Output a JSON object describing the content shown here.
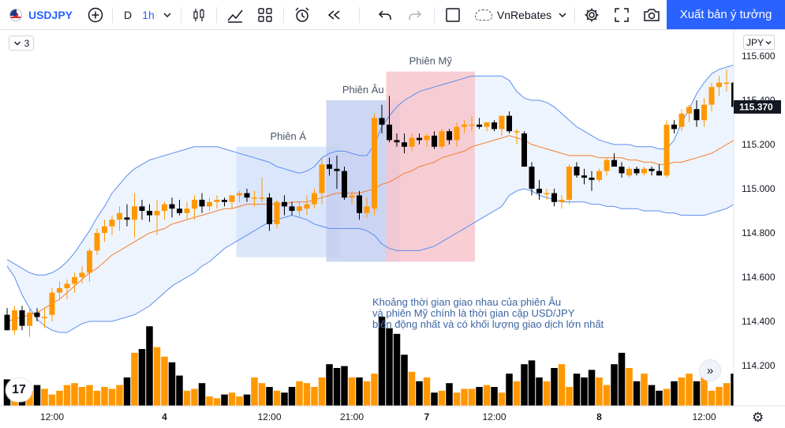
{
  "toolbar": {
    "symbol": "USDJPY",
    "interval_type": "D",
    "interval": "1h",
    "layout_name": "VnRebates",
    "publish_label": "Xuất bản ý tưởng"
  },
  "legend_badge": "3",
  "currency": "JPY",
  "current_price": "115.370",
  "annotation_lines": [
    "Khoảng thời gian giao nhau của phiên Âu",
    "và phiên Mỹ chính là thời gian cặp USD/JPY",
    "biến động nhất và có khối lượng giao dịch lớn nhất"
  ],
  "colors": {
    "bull": "#ff9800",
    "bear": "#000000",
    "band": "#5b8def",
    "band_fill": "#eef4fd",
    "basis": "#f57c2b",
    "session_asia": "#d6e3fb",
    "session_europe": "#c4cff1",
    "session_us": "#f7c6cc",
    "accent": "#2962ff"
  },
  "chart_data": {
    "type": "candlestick",
    "symbol": "USDJPY",
    "timeframe": "1h",
    "y_axis": {
      "ticks": [
        115.6,
        115.4,
        115.2,
        115.0,
        114.8,
        114.6,
        114.4,
        114.2
      ],
      "tick_labels": [
        "115.600",
        "115.400",
        "115.200",
        "115.000",
        "114.800",
        "114.600",
        "114.400",
        "114.200"
      ],
      "ylim": [
        114.03,
        115.66
      ]
    },
    "x_axis": {
      "tick_labels": [
        "12:00",
        "4",
        "12:00",
        "21:00",
        "7",
        "12:00",
        "8",
        "12:00"
      ]
    },
    "sessions": [
      {
        "name": "Phiên Á",
        "high": 115.19,
        "low": 114.69,
        "from_bar": 31,
        "to_bar": 44
      },
      {
        "name": "Phiên Âu",
        "high": 115.4,
        "low": 114.67,
        "from_bar": 43,
        "to_bar": 52
      },
      {
        "name": "Phiên Mỹ",
        "high": 115.53,
        "low": 114.67,
        "from_bar": 51,
        "to_bar": 62
      }
    ],
    "candles": [
      {
        "o": 114.43,
        "h": 114.46,
        "l": 114.36,
        "c": 114.36
      },
      {
        "o": 114.36,
        "h": 114.47,
        "l": 114.34,
        "c": 114.45
      },
      {
        "o": 114.45,
        "h": 114.47,
        "l": 114.36,
        "c": 114.38
      },
      {
        "o": 114.38,
        "h": 114.46,
        "l": 114.33,
        "c": 114.44
      },
      {
        "o": 114.44,
        "h": 114.46,
        "l": 114.4,
        "c": 114.42
      },
      {
        "o": 114.42,
        "h": 114.46,
        "l": 114.37,
        "c": 114.42
      },
      {
        "o": 114.43,
        "h": 114.55,
        "l": 114.4,
        "c": 114.53
      },
      {
        "o": 114.53,
        "h": 114.58,
        "l": 114.5,
        "c": 114.55
      },
      {
        "o": 114.55,
        "h": 114.59,
        "l": 114.5,
        "c": 114.57
      },
      {
        "o": 114.57,
        "h": 114.62,
        "l": 114.53,
        "c": 114.6
      },
      {
        "o": 114.6,
        "h": 114.65,
        "l": 114.57,
        "c": 114.62
      },
      {
        "o": 114.62,
        "h": 114.73,
        "l": 114.58,
        "c": 114.72
      },
      {
        "o": 114.72,
        "h": 114.82,
        "l": 114.7,
        "c": 114.8
      },
      {
        "o": 114.8,
        "h": 114.86,
        "l": 114.76,
        "c": 114.83
      },
      {
        "o": 114.83,
        "h": 114.88,
        "l": 114.79,
        "c": 114.86
      },
      {
        "o": 114.86,
        "h": 114.92,
        "l": 114.81,
        "c": 114.89
      },
      {
        "o": 114.87,
        "h": 114.93,
        "l": 114.83,
        "c": 114.86
      },
      {
        "o": 114.86,
        "h": 114.98,
        "l": 114.78,
        "c": 114.92
      },
      {
        "o": 114.92,
        "h": 114.95,
        "l": 114.86,
        "c": 114.9
      },
      {
        "o": 114.9,
        "h": 114.93,
        "l": 114.85,
        "c": 114.88
      },
      {
        "o": 114.88,
        "h": 114.95,
        "l": 114.79,
        "c": 114.9
      },
      {
        "o": 114.9,
        "h": 114.94,
        "l": 114.86,
        "c": 114.93
      },
      {
        "o": 114.93,
        "h": 114.96,
        "l": 114.87,
        "c": 114.91
      },
      {
        "o": 114.91,
        "h": 114.95,
        "l": 114.88,
        "c": 114.89
      },
      {
        "o": 114.89,
        "h": 114.94,
        "l": 114.86,
        "c": 114.91
      },
      {
        "o": 114.91,
        "h": 114.97,
        "l": 114.86,
        "c": 114.95
      },
      {
        "o": 114.95,
        "h": 114.98,
        "l": 114.89,
        "c": 114.92
      },
      {
        "o": 114.92,
        "h": 114.96,
        "l": 114.9,
        "c": 114.94
      },
      {
        "o": 114.94,
        "h": 114.97,
        "l": 114.91,
        "c": 114.95
      },
      {
        "o": 114.95,
        "h": 114.96,
        "l": 114.92,
        "c": 114.94
      },
      {
        "o": 114.94,
        "h": 114.97,
        "l": 114.91,
        "c": 114.97
      },
      {
        "o": 114.97,
        "h": 114.99,
        "l": 114.94,
        "c": 114.98
      },
      {
        "o": 114.98,
        "h": 115.0,
        "l": 114.94,
        "c": 114.96
      },
      {
        "o": 114.96,
        "h": 114.99,
        "l": 114.92,
        "c": 114.96
      },
      {
        "o": 114.96,
        "h": 115.05,
        "l": 114.94,
        "c": 114.96
      },
      {
        "o": 114.96,
        "h": 114.98,
        "l": 114.81,
        "c": 114.84
      },
      {
        "o": 114.84,
        "h": 114.95,
        "l": 114.82,
        "c": 114.94
      },
      {
        "o": 114.94,
        "h": 114.97,
        "l": 114.88,
        "c": 114.92
      },
      {
        "o": 114.92,
        "h": 114.94,
        "l": 114.88,
        "c": 114.9
      },
      {
        "o": 114.9,
        "h": 114.94,
        "l": 114.87,
        "c": 114.92
      },
      {
        "o": 114.91,
        "h": 114.97,
        "l": 114.88,
        "c": 114.93
      },
      {
        "o": 114.93,
        "h": 115.0,
        "l": 114.91,
        "c": 114.98
      },
      {
        "o": 114.98,
        "h": 115.14,
        "l": 114.93,
        "c": 115.11
      },
      {
        "o": 115.11,
        "h": 115.14,
        "l": 115.06,
        "c": 115.09
      },
      {
        "o": 115.09,
        "h": 115.15,
        "l": 115.0,
        "c": 115.08
      },
      {
        "o": 115.08,
        "h": 115.1,
        "l": 114.95,
        "c": 114.96
      },
      {
        "o": 114.96,
        "h": 114.99,
        "l": 114.93,
        "c": 114.97
      },
      {
        "o": 114.97,
        "h": 114.99,
        "l": 114.86,
        "c": 114.89
      },
      {
        "o": 114.89,
        "h": 114.96,
        "l": 114.87,
        "c": 114.92
      },
      {
        "o": 114.91,
        "h": 115.34,
        "l": 114.88,
        "c": 115.32
      },
      {
        "o": 115.32,
        "h": 115.38,
        "l": 115.25,
        "c": 115.29
      },
      {
        "o": 115.29,
        "h": 115.42,
        "l": 115.21,
        "c": 115.22
      },
      {
        "o": 115.22,
        "h": 115.25,
        "l": 115.19,
        "c": 115.21
      },
      {
        "o": 115.21,
        "h": 115.25,
        "l": 115.16,
        "c": 115.19
      },
      {
        "o": 115.19,
        "h": 115.25,
        "l": 115.17,
        "c": 115.23
      },
      {
        "o": 115.23,
        "h": 115.25,
        "l": 115.2,
        "c": 115.22
      },
      {
        "o": 115.22,
        "h": 115.25,
        "l": 115.19,
        "c": 115.24
      },
      {
        "o": 115.24,
        "h": 115.26,
        "l": 115.18,
        "c": 115.19
      },
      {
        "o": 115.19,
        "h": 115.27,
        "l": 115.18,
        "c": 115.26
      },
      {
        "o": 115.26,
        "h": 115.27,
        "l": 115.2,
        "c": 115.22
      },
      {
        "o": 115.22,
        "h": 115.3,
        "l": 115.19,
        "c": 115.28
      },
      {
        "o": 115.28,
        "h": 115.31,
        "l": 115.25,
        "c": 115.29
      },
      {
        "o": 115.29,
        "h": 115.33,
        "l": 115.26,
        "c": 115.29
      },
      {
        "o": 115.29,
        "h": 115.32,
        "l": 115.27,
        "c": 115.28
      },
      {
        "o": 115.28,
        "h": 115.3,
        "l": 115.26,
        "c": 115.3
      },
      {
        "o": 115.3,
        "h": 115.31,
        "l": 115.26,
        "c": 115.27
      },
      {
        "o": 115.27,
        "h": 115.33,
        "l": 115.24,
        "c": 115.33
      },
      {
        "o": 115.33,
        "h": 115.35,
        "l": 115.25,
        "c": 115.26
      },
      {
        "o": 115.26,
        "h": 115.27,
        "l": 115.2,
        "c": 115.26
      },
      {
        "o": 115.25,
        "h": 115.26,
        "l": 115.1,
        "c": 115.1
      },
      {
        "o": 115.1,
        "h": 115.12,
        "l": 114.97,
        "c": 115.0
      },
      {
        "o": 115.0,
        "h": 115.04,
        "l": 114.95,
        "c": 114.98
      },
      {
        "o": 114.98,
        "h": 115.0,
        "l": 114.95,
        "c": 114.98
      },
      {
        "o": 114.98,
        "h": 115.0,
        "l": 114.92,
        "c": 114.94
      },
      {
        "o": 114.94,
        "h": 114.97,
        "l": 114.91,
        "c": 114.95
      },
      {
        "o": 114.95,
        "h": 115.11,
        "l": 114.93,
        "c": 115.1
      },
      {
        "o": 115.1,
        "h": 115.12,
        "l": 115.05,
        "c": 115.06
      },
      {
        "o": 115.06,
        "h": 115.09,
        "l": 115.02,
        "c": 115.05
      },
      {
        "o": 115.05,
        "h": 115.08,
        "l": 114.99,
        "c": 115.04
      },
      {
        "o": 115.04,
        "h": 115.09,
        "l": 115.03,
        "c": 115.08
      },
      {
        "o": 115.08,
        "h": 115.14,
        "l": 115.06,
        "c": 115.13
      },
      {
        "o": 115.13,
        "h": 115.16,
        "l": 115.1,
        "c": 115.1
      },
      {
        "o": 115.1,
        "h": 115.12,
        "l": 115.05,
        "c": 115.07
      },
      {
        "o": 115.06,
        "h": 115.1,
        "l": 115.05,
        "c": 115.09
      },
      {
        "o": 115.09,
        "h": 115.1,
        "l": 115.06,
        "c": 115.07
      },
      {
        "o": 115.07,
        "h": 115.1,
        "l": 115.06,
        "c": 115.09
      },
      {
        "o": 115.09,
        "h": 115.1,
        "l": 115.06,
        "c": 115.08
      },
      {
        "o": 115.08,
        "h": 115.11,
        "l": 115.06,
        "c": 115.06
      },
      {
        "o": 115.06,
        "h": 115.31,
        "l": 115.05,
        "c": 115.29
      },
      {
        "o": 115.29,
        "h": 115.31,
        "l": 115.25,
        "c": 115.27
      },
      {
        "o": 115.28,
        "h": 115.36,
        "l": 115.26,
        "c": 115.34
      },
      {
        "o": 115.34,
        "h": 115.38,
        "l": 115.3,
        "c": 115.37
      },
      {
        "o": 115.36,
        "h": 115.4,
        "l": 115.28,
        "c": 115.31
      },
      {
        "o": 115.31,
        "h": 115.41,
        "l": 115.28,
        "c": 115.38
      },
      {
        "o": 115.38,
        "h": 115.48,
        "l": 115.35,
        "c": 115.46
      },
      {
        "o": 115.46,
        "h": 115.51,
        "l": 115.42,
        "c": 115.48
      },
      {
        "o": 115.48,
        "h": 115.54,
        "l": 115.44,
        "c": 115.48
      },
      {
        "o": 115.48,
        "h": 115.52,
        "l": 115.34,
        "c": 115.37
      }
    ],
    "volume": [
      28,
      20,
      24,
      16,
      22,
      18,
      12,
      16,
      22,
      24,
      20,
      22,
      16,
      20,
      18,
      22,
      30,
      56,
      60,
      84,
      62,
      52,
      46,
      32,
      16,
      18,
      24,
      10,
      8,
      12,
      14,
      10,
      12,
      30,
      24,
      20,
      16,
      14,
      20,
      26,
      24,
      20,
      30,
      44,
      40,
      42,
      30,
      30,
      26,
      34,
      94,
      82,
      76,
      54,
      36,
      26,
      30,
      14,
      16,
      24,
      14,
      18,
      18,
      20,
      22,
      20,
      14,
      34,
      26,
      44,
      48,
      30,
      26,
      40,
      44,
      20,
      34,
      30,
      38,
      30,
      22,
      44,
      56,
      40,
      26,
      34,
      22,
      16,
      18,
      26,
      30,
      34,
      26,
      30,
      16,
      20,
      24,
      34
    ],
    "bollinger": {
      "basis": [
        114.4,
        114.41,
        114.42,
        114.43,
        114.44,
        114.46,
        114.48,
        114.5,
        114.53,
        114.56,
        114.59,
        114.62,
        114.64,
        114.67,
        114.7,
        114.72,
        114.74,
        114.76,
        114.78,
        114.8,
        114.81,
        114.82,
        114.84,
        114.85,
        114.86,
        114.87,
        114.88,
        114.89,
        114.9,
        114.91,
        114.91,
        114.92,
        114.93,
        114.93,
        114.93,
        114.93,
        114.93,
        114.93,
        114.94,
        114.94,
        114.94,
        114.95,
        114.96,
        114.97,
        114.98,
        114.98,
        114.98,
        114.98,
        114.99,
        115.0,
        115.02,
        115.03,
        115.05,
        115.07,
        115.08,
        115.1,
        115.11,
        115.12,
        115.14,
        115.15,
        115.16,
        115.17,
        115.19,
        115.2,
        115.21,
        115.22,
        115.23,
        115.24,
        115.23,
        115.22,
        115.2,
        115.19,
        115.18,
        115.17,
        115.16,
        115.15,
        115.15,
        115.15,
        115.15,
        115.14,
        115.14,
        115.14,
        115.14,
        115.13,
        115.13,
        115.12,
        115.12,
        115.11,
        115.11,
        115.12,
        115.12,
        115.13,
        115.14,
        115.15,
        115.16,
        115.18,
        115.2,
        115.22
      ],
      "upper": [
        114.68,
        114.66,
        114.64,
        114.62,
        114.61,
        114.61,
        114.62,
        114.64,
        114.67,
        114.71,
        114.76,
        114.81,
        114.87,
        114.92,
        114.98,
        115.02,
        115.06,
        115.09,
        115.11,
        115.13,
        115.14,
        115.15,
        115.16,
        115.17,
        115.18,
        115.19,
        115.19,
        115.19,
        115.19,
        115.18,
        115.17,
        115.16,
        115.15,
        115.14,
        115.13,
        115.12,
        115.1,
        115.09,
        115.08,
        115.07,
        115.08,
        115.1,
        115.14,
        115.16,
        115.17,
        115.17,
        115.16,
        115.15,
        115.15,
        115.2,
        115.28,
        115.33,
        115.37,
        115.4,
        115.42,
        115.44,
        115.45,
        115.46,
        115.47,
        115.48,
        115.49,
        115.5,
        115.51,
        115.51,
        115.51,
        115.51,
        115.51,
        115.49,
        115.44,
        115.41,
        115.4,
        115.4,
        115.39,
        115.37,
        115.34,
        115.31,
        115.28,
        115.26,
        115.24,
        115.22,
        115.21,
        115.2,
        115.2,
        115.2,
        115.19,
        115.19,
        115.19,
        115.18,
        115.18,
        115.22,
        115.3,
        115.36,
        115.43,
        115.48,
        115.52,
        115.54,
        115.55,
        115.56
      ],
      "lower": [
        114.65,
        114.6,
        114.52,
        114.46,
        114.41,
        114.38,
        114.36,
        114.35,
        114.35,
        114.37,
        114.39,
        114.4,
        114.4,
        114.4,
        114.4,
        114.41,
        114.42,
        114.43,
        114.45,
        114.47,
        114.5,
        114.53,
        114.56,
        114.58,
        114.6,
        114.62,
        114.65,
        114.67,
        114.7,
        114.73,
        114.75,
        114.77,
        114.79,
        114.81,
        114.83,
        114.85,
        114.86,
        114.87,
        114.88,
        114.87,
        114.86,
        114.84,
        114.83,
        114.82,
        114.82,
        114.82,
        114.82,
        114.82,
        114.81,
        114.79,
        114.75,
        114.73,
        114.72,
        114.72,
        114.72,
        114.72,
        114.73,
        114.74,
        114.76,
        114.78,
        114.8,
        114.82,
        114.84,
        114.86,
        114.88,
        114.9,
        114.92,
        114.97,
        114.99,
        115.0,
        114.99,
        114.97,
        114.96,
        114.95,
        114.94,
        114.94,
        114.94,
        114.94,
        114.93,
        114.93,
        114.92,
        114.92,
        114.91,
        114.91,
        114.91,
        114.9,
        114.9,
        114.9,
        114.89,
        114.89,
        114.88,
        114.88,
        114.88,
        114.88,
        114.89,
        114.9,
        114.91,
        114.93
      ]
    }
  }
}
